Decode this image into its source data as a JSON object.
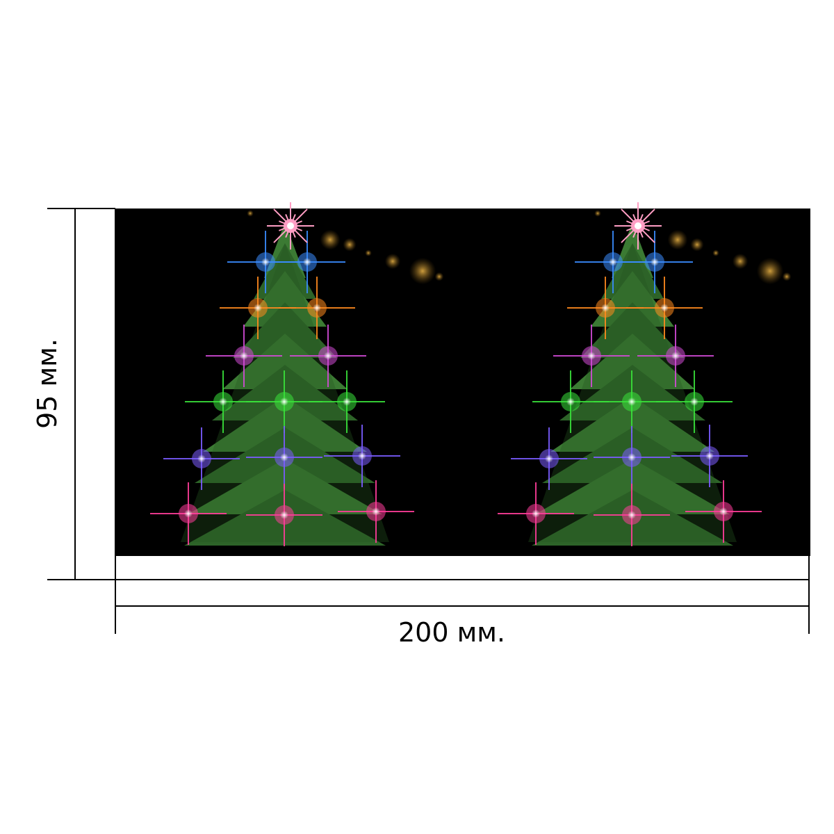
{
  "dimensions": {
    "width_label": "200 мм.",
    "height_label": "95 мм."
  },
  "print_area": {
    "background": "#000000",
    "motif": "christmas-tree-with-colored-lights",
    "motif_count": 2
  },
  "colors": {
    "tree_green": "#2f6a2a",
    "light_blue": "#3a8cff",
    "light_orange": "#ff8a1e",
    "light_magenta": "#d24bd6",
    "light_green": "#39e23a",
    "light_violet": "#7b5cff",
    "light_pink": "#ff3d9a",
    "star": "#ff9ec4",
    "bokeh": "#b8862b"
  }
}
